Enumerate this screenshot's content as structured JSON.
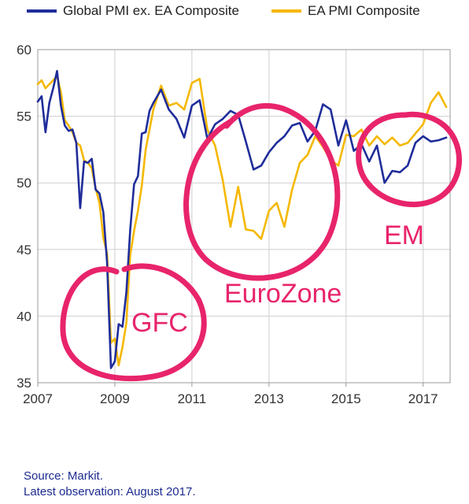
{
  "chart_data": {
    "type": "line",
    "title": "",
    "xlabel": "",
    "ylabel": "",
    "ylim": [
      35,
      60
    ],
    "xlim": [
      2007.0,
      2017.7
    ],
    "yticks": [
      "35",
      "40",
      "45",
      "50",
      "55",
      "60"
    ],
    "xticks": [
      "2007",
      "2009",
      "2011",
      "2013",
      "2015",
      "2017"
    ],
    "grid": true,
    "legend_position": "top",
    "series": [
      {
        "name": "Global PMI ex. EA Composite",
        "color": "#1f2d9a",
        "x": [
          2007.0,
          2007.1,
          2007.2,
          2007.3,
          2007.4,
          2007.5,
          2007.6,
          2007.7,
          2007.8,
          2007.9,
          2008.0,
          2008.1,
          2008.2,
          2008.3,
          2008.4,
          2008.5,
          2008.6,
          2008.7,
          2008.8,
          2008.9,
          2009.0,
          2009.1,
          2009.2,
          2009.3,
          2009.4,
          2009.5,
          2009.6,
          2009.7,
          2009.8,
          2009.9,
          2010.0,
          2010.2,
          2010.4,
          2010.6,
          2010.8,
          2011.0,
          2011.2,
          2011.4,
          2011.6,
          2011.8,
          2012.0,
          2012.2,
          2012.4,
          2012.6,
          2012.8,
          2013.0,
          2013.2,
          2013.4,
          2013.6,
          2013.8,
          2014.0,
          2014.2,
          2014.4,
          2014.6,
          2014.8,
          2015.0,
          2015.2,
          2015.4,
          2015.6,
          2015.8,
          2016.0,
          2016.2,
          2016.4,
          2016.6,
          2016.8,
          2017.0,
          2017.2,
          2017.4,
          2017.6
        ],
        "values": [
          56.1,
          56.5,
          53.8,
          56.0,
          57.1,
          58.4,
          55.8,
          54.3,
          53.9,
          54.0,
          53.0,
          48.1,
          51.6,
          51.5,
          51.8,
          49.5,
          49.2,
          47.8,
          44.0,
          36.1,
          36.6,
          39.4,
          39.2,
          41.8,
          46.5,
          49.9,
          50.5,
          53.7,
          53.8,
          55.4,
          56.0,
          57.0,
          55.5,
          54.8,
          53.4,
          55.8,
          56.2,
          53.3,
          54.4,
          54.8,
          55.4,
          55.1,
          53.1,
          51.0,
          51.3,
          52.3,
          53.0,
          53.5,
          54.3,
          54.5,
          53.1,
          53.9,
          55.9,
          55.5,
          52.8,
          54.7,
          52.4,
          52.9,
          51.6,
          52.8,
          50.0,
          50.9,
          50.8,
          51.3,
          53.0,
          53.5,
          53.1,
          53.2,
          53.4
        ]
      },
      {
        "name": "EA PMI Composite",
        "color": "#f5b800",
        "x": [
          2007.0,
          2007.1,
          2007.2,
          2007.3,
          2007.4,
          2007.5,
          2007.6,
          2007.7,
          2007.8,
          2007.9,
          2008.0,
          2008.1,
          2008.2,
          2008.3,
          2008.4,
          2008.5,
          2008.6,
          2008.7,
          2008.8,
          2008.9,
          2009.0,
          2009.1,
          2009.2,
          2009.3,
          2009.4,
          2009.5,
          2009.6,
          2009.7,
          2009.8,
          2009.9,
          2010.0,
          2010.2,
          2010.4,
          2010.6,
          2010.8,
          2011.0,
          2011.2,
          2011.4,
          2011.6,
          2011.8,
          2012.0,
          2012.2,
          2012.4,
          2012.6,
          2012.8,
          2013.0,
          2013.2,
          2013.4,
          2013.6,
          2013.8,
          2014.0,
          2014.2,
          2014.4,
          2014.6,
          2014.8,
          2015.0,
          2015.2,
          2015.4,
          2015.6,
          2015.8,
          2016.0,
          2016.2,
          2016.4,
          2016.6,
          2016.8,
          2017.0,
          2017.2,
          2017.4,
          2017.6
        ],
        "values": [
          57.4,
          57.7,
          57.1,
          57.4,
          57.7,
          58.0,
          56.8,
          54.7,
          54.3,
          53.8,
          53.0,
          52.8,
          51.7,
          51.5,
          51.1,
          49.6,
          48.5,
          45.9,
          44.7,
          38.0,
          38.3,
          36.3,
          37.7,
          39.5,
          44.6,
          46.4,
          47.9,
          49.8,
          52.5,
          54.0,
          55.5,
          57.3,
          55.8,
          56.0,
          55.5,
          57.5,
          57.8,
          54.0,
          52.8,
          50.2,
          46.7,
          49.7,
          46.5,
          46.4,
          45.8,
          47.9,
          48.5,
          46.7,
          49.5,
          51.5,
          52.1,
          53.5,
          52.7,
          51.7,
          51.3,
          53.6,
          53.5,
          54.0,
          52.8,
          53.5,
          52.9,
          53.4,
          52.8,
          53.0,
          53.7,
          54.4,
          56.0,
          56.8,
          55.7
        ]
      }
    ],
    "annotations": [
      {
        "text": "GFC",
        "color": "#e8246b"
      },
      {
        "text": "EuroZone",
        "color": "#e8246b"
      },
      {
        "text": "EM",
        "color": "#e8246b"
      }
    ]
  },
  "notes": {
    "source": "Source: Markit.",
    "latest": "Latest observation: August 2017."
  }
}
